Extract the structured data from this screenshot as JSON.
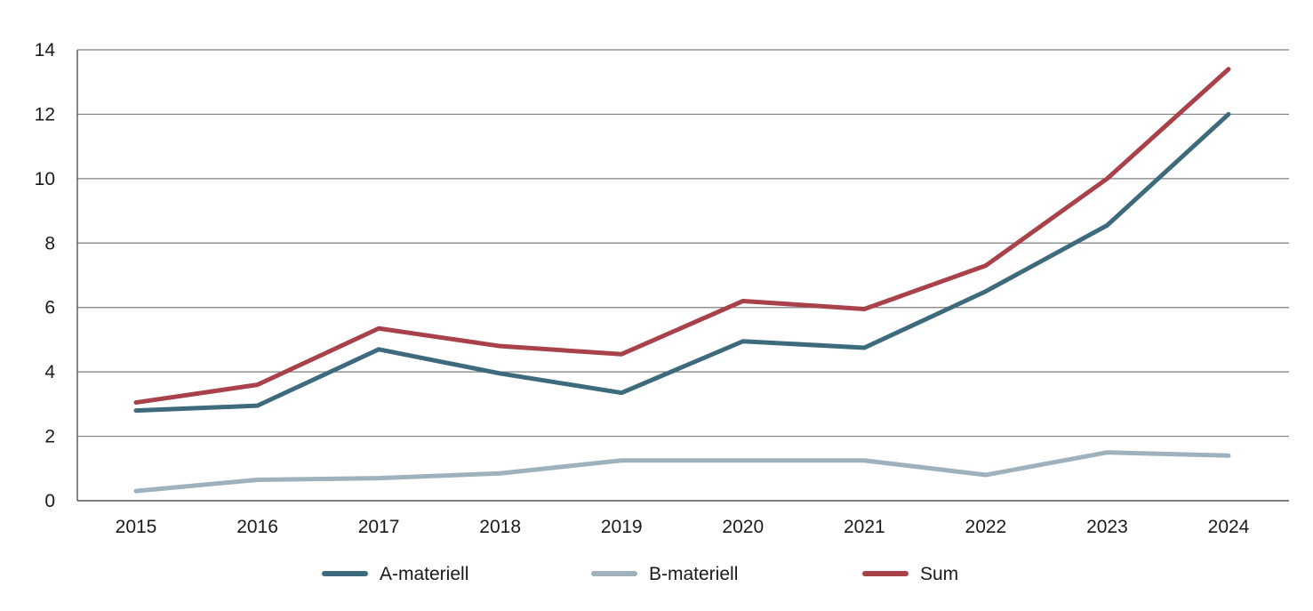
{
  "chart_data": {
    "type": "line",
    "title": "",
    "xlabel": "",
    "ylabel": "",
    "categories": [
      "2015",
      "2016",
      "2017",
      "2018",
      "2019",
      "2020",
      "2021",
      "2022",
      "2023",
      "2024"
    ],
    "ylim": [
      0,
      14
    ],
    "yticks": [
      "0",
      "2",
      "4",
      "6",
      "8",
      "10",
      "12",
      "14"
    ],
    "grid": true,
    "legend_position": "bottom-center",
    "series": [
      {
        "name": "A-materiell",
        "color": "#3d6b7d",
        "values": [
          2.8,
          2.95,
          4.7,
          3.95,
          3.35,
          4.95,
          4.75,
          6.5,
          8.55,
          12.0
        ]
      },
      {
        "name": "B-materiell",
        "color": "#9eb1bc",
        "values": [
          0.3,
          0.65,
          0.7,
          0.85,
          1.25,
          1.25,
          1.25,
          0.8,
          1.5,
          1.4
        ]
      },
      {
        "name": "Sum",
        "color": "#a8414a",
        "values": [
          3.05,
          3.6,
          5.35,
          4.8,
          4.55,
          6.2,
          5.95,
          7.3,
          10.0,
          13.4
        ]
      }
    ]
  }
}
